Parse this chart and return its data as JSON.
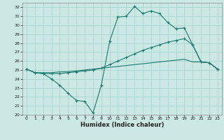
{
  "xlabel": "Humidex (Indice chaleur)",
  "background_color": "#cce8e4",
  "grid_color": "#aad4d0",
  "line_color": "#1a7a6e",
  "ylim": [
    20,
    32.5
  ],
  "xlim": [
    -0.5,
    23.5
  ],
  "yticks": [
    20,
    21,
    22,
    23,
    24,
    25,
    26,
    27,
    28,
    29,
    30,
    31,
    32
  ],
  "xticks": [
    0,
    1,
    2,
    3,
    4,
    5,
    6,
    7,
    8,
    9,
    10,
    11,
    12,
    13,
    14,
    15,
    16,
    17,
    18,
    19,
    20,
    21,
    22,
    23
  ],
  "line1_x": [
    0,
    1,
    2,
    3,
    4,
    5,
    6,
    7,
    8,
    9,
    10,
    11,
    12,
    13,
    14,
    15,
    16,
    17,
    18,
    19,
    20,
    21,
    22,
    23
  ],
  "line1_y": [
    25.1,
    24.7,
    24.6,
    24.0,
    23.3,
    22.4,
    21.6,
    21.5,
    20.2,
    23.3,
    28.2,
    30.9,
    31.0,
    32.1,
    31.3,
    31.6,
    31.3,
    30.3,
    29.6,
    29.7,
    27.8,
    25.9,
    25.8,
    25.1
  ],
  "line2_x": [
    0,
    1,
    2,
    3,
    4,
    5,
    6,
    7,
    8,
    9,
    10,
    11,
    12,
    13,
    14,
    15,
    16,
    17,
    18,
    19,
    20,
    21,
    22,
    23
  ],
  "line2_y": [
    25.1,
    24.7,
    24.6,
    24.6,
    24.6,
    24.7,
    24.8,
    24.9,
    25.0,
    25.2,
    25.6,
    26.0,
    26.4,
    26.8,
    27.2,
    27.5,
    27.8,
    28.1,
    28.3,
    28.5,
    27.8,
    25.9,
    25.8,
    25.1
  ],
  "line3_x": [
    0,
    1,
    2,
    3,
    4,
    5,
    6,
    7,
    8,
    9,
    10,
    11,
    12,
    13,
    14,
    15,
    16,
    17,
    18,
    19,
    20,
    21,
    22,
    23
  ],
  "line3_y": [
    25.1,
    24.7,
    24.7,
    24.7,
    24.8,
    24.8,
    24.9,
    25.0,
    25.1,
    25.2,
    25.3,
    25.4,
    25.5,
    25.6,
    25.7,
    25.8,
    25.9,
    26.0,
    26.1,
    26.2,
    25.9,
    25.9,
    25.8,
    25.1
  ]
}
